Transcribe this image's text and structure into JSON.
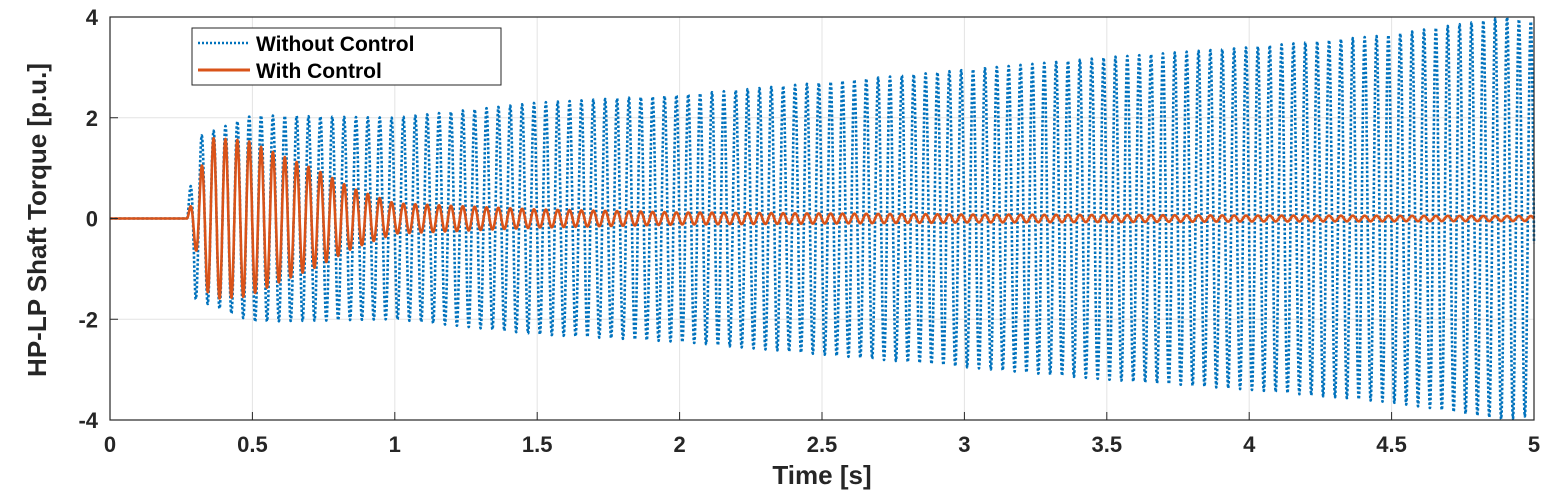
{
  "chart_data": {
    "type": "line",
    "xlabel": "Time [s]",
    "ylabel": "HP-LP Shaft Torque [p.u.]",
    "xlim": [
      0,
      5
    ],
    "ylim": [
      -4,
      4
    ],
    "x_ticks": [
      0,
      0.5,
      1,
      1.5,
      2,
      2.5,
      3,
      3.5,
      4,
      4.5,
      5
    ],
    "x_tick_labels": [
      "0",
      "0.5",
      "1",
      "1.5",
      "2",
      "2.5",
      "3",
      "3.5",
      "4",
      "4.5",
      "5"
    ],
    "y_ticks": [
      4,
      2,
      0,
      -2,
      -4
    ],
    "y_tick_labels": [
      "4",
      "2",
      "0",
      "-2",
      "-4"
    ],
    "grid": true,
    "legend_position": "top-left",
    "series": [
      {
        "name": "Without Control",
        "color": "#0072BD",
        "style": "dotted",
        "envelope": {
          "start_time": 0.27,
          "time": [
            0.27,
            0.3,
            0.5,
            1.0,
            1.5,
            2.0,
            2.5,
            3.0,
            3.5,
            4.0,
            4.5,
            4.9,
            5.0
          ],
          "amplitude": [
            0.0,
            1.6,
            2.05,
            2.0,
            2.3,
            2.45,
            2.7,
            2.95,
            3.2,
            3.4,
            3.65,
            4.0,
            3.9
          ]
        },
        "oscillation_frequency_hz": 24
      },
      {
        "name": "With Control",
        "color": "#D95319",
        "style": "solid",
        "envelope": {
          "start_time": 0.27,
          "time": [
            0.27,
            0.35,
            0.48,
            0.6,
            0.73,
            0.85,
            1.0,
            1.5,
            2.0,
            3.0,
            4.0,
            5.0
          ],
          "amplitude": [
            0.0,
            1.6,
            1.55,
            1.25,
            0.95,
            0.6,
            0.3,
            0.18,
            0.12,
            0.08,
            0.06,
            0.05
          ]
        },
        "oscillation_frequency_hz": 24
      }
    ]
  }
}
